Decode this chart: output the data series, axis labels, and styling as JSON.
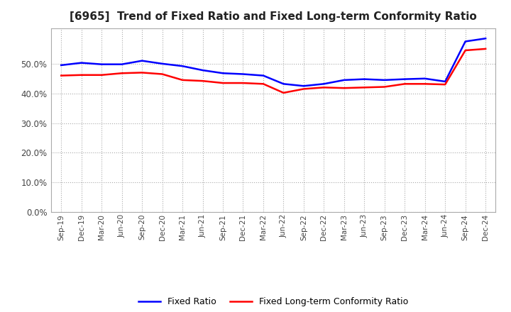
{
  "title": "[6965]  Trend of Fixed Ratio and Fixed Long-term Conformity Ratio",
  "title_fontsize": 11,
  "x_labels": [
    "Sep-19",
    "Dec-19",
    "Mar-20",
    "Jun-20",
    "Sep-20",
    "Dec-20",
    "Mar-21",
    "Jun-21",
    "Sep-21",
    "Dec-21",
    "Mar-22",
    "Jun-22",
    "Sep-22",
    "Dec-22",
    "Mar-23",
    "Jun-23",
    "Sep-23",
    "Dec-23",
    "Mar-24",
    "Jun-24",
    "Sep-24",
    "Dec-24"
  ],
  "fixed_ratio": [
    49.5,
    50.3,
    49.8,
    49.8,
    51.0,
    50.0,
    49.2,
    47.8,
    46.8,
    46.5,
    46.0,
    43.2,
    42.5,
    43.2,
    44.5,
    44.8,
    44.5,
    44.8,
    45.0,
    44.0,
    57.5,
    58.5
  ],
  "fixed_lt_ratio": [
    46.0,
    46.2,
    46.2,
    46.8,
    47.0,
    46.5,
    44.5,
    44.2,
    43.5,
    43.5,
    43.2,
    40.2,
    41.5,
    42.0,
    41.8,
    42.0,
    42.2,
    43.2,
    43.2,
    43.0,
    54.5,
    55.0
  ],
  "fixed_ratio_color": "#0000ff",
  "fixed_lt_ratio_color": "#ff0000",
  "ylim": [
    0,
    62
  ],
  "yticks": [
    0,
    10,
    20,
    30,
    40,
    50
  ],
  "grid_color": "#aaaaaa",
  "background_color": "#ffffff",
  "legend_labels": [
    "Fixed Ratio",
    "Fixed Long-term Conformity Ratio"
  ]
}
